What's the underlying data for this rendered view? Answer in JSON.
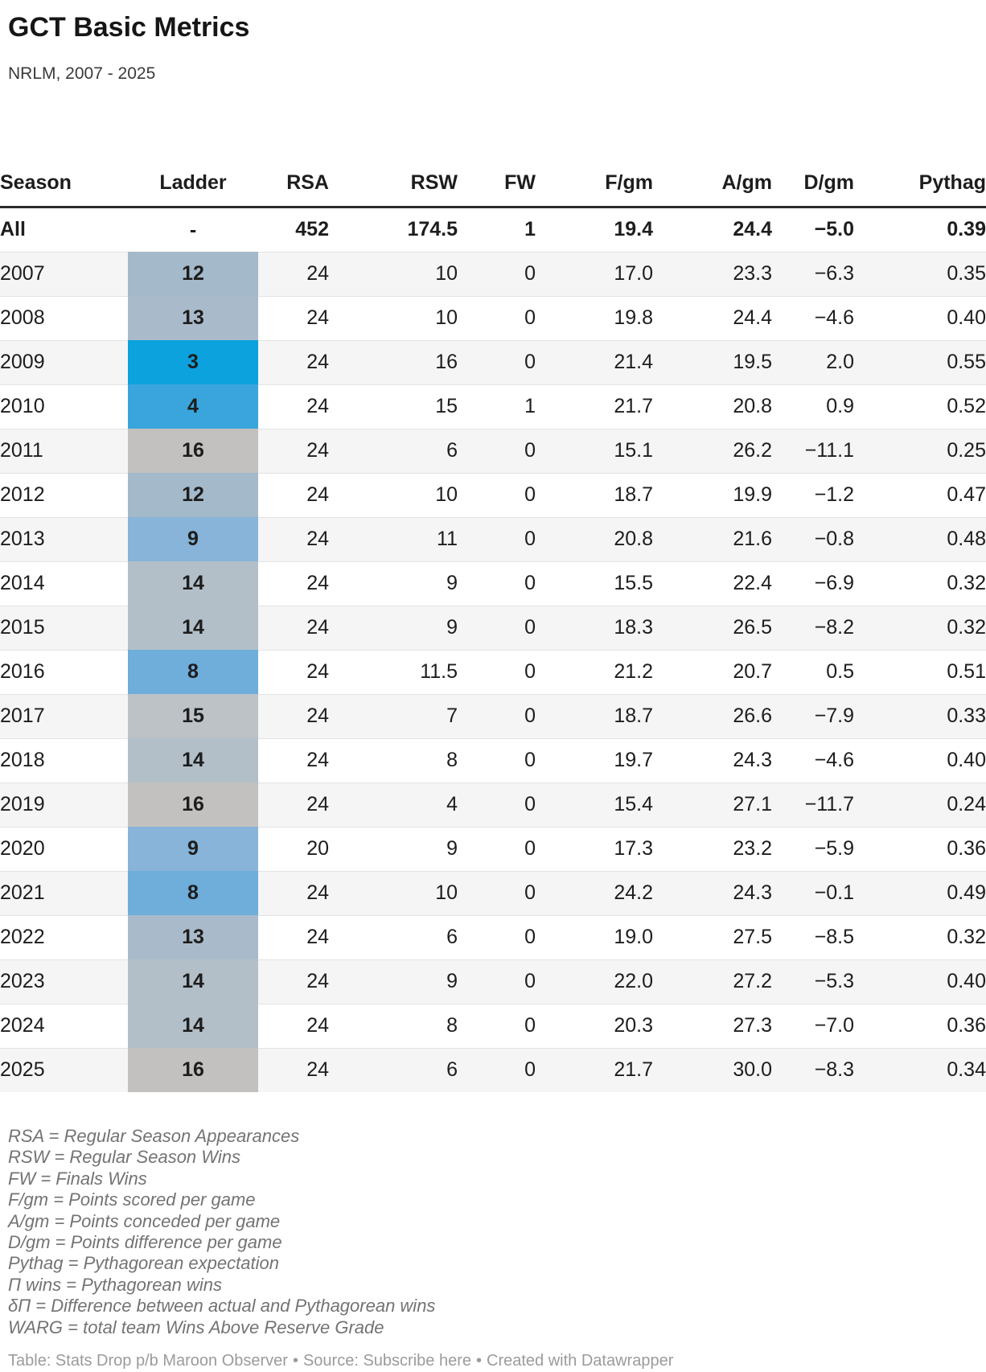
{
  "header": {
    "title": "GCT Basic Metrics",
    "subtitle": "NRLM, 2007 - 2025"
  },
  "chart_data": {
    "type": "table",
    "title": "GCT Basic Metrics",
    "subtitle": "NRLM, 2007 - 2025",
    "columns": [
      {
        "key": "season",
        "label": "Season",
        "align": "left"
      },
      {
        "key": "ladder",
        "label": "Ladder",
        "align": "center"
      },
      {
        "key": "rsa",
        "label": "RSA",
        "align": "right"
      },
      {
        "key": "rsw",
        "label": "RSW",
        "align": "right"
      },
      {
        "key": "fw",
        "label": "FW",
        "align": "right"
      },
      {
        "key": "fgm",
        "label": "F/gm",
        "align": "right"
      },
      {
        "key": "agm",
        "label": "A/gm",
        "align": "right"
      },
      {
        "key": "dgm",
        "label": "D/gm",
        "align": "right"
      },
      {
        "key": "pyth",
        "label": "Pythag",
        "align": "right"
      }
    ],
    "rows": [
      {
        "season": "All",
        "ladder": "-",
        "ladder_bg": null,
        "ladder_light": false,
        "rsa": "452",
        "rsw": "174.5",
        "fw": "1",
        "fgm": "19.4",
        "agm": "24.4",
        "dgm": "−5.0",
        "pyth": "0.39",
        "bold": true
      },
      {
        "season": "2007",
        "ladder": "12",
        "ladder_bg": "#a4b9ca",
        "ladder_light": false,
        "rsa": "24",
        "rsw": "10",
        "fw": "0",
        "fgm": "17.0",
        "agm": "23.3",
        "dgm": "−6.3",
        "pyth": "0.35",
        "bold": false
      },
      {
        "season": "2008",
        "ladder": "13",
        "ladder_bg": "#a9bbca",
        "ladder_light": false,
        "rsa": "24",
        "rsw": "10",
        "fw": "0",
        "fgm": "19.8",
        "agm": "24.4",
        "dgm": "−4.6",
        "pyth": "0.40",
        "bold": false
      },
      {
        "season": "2009",
        "ladder": "3",
        "ladder_bg": "#0ba2de",
        "ladder_light": true,
        "rsa": "24",
        "rsw": "16",
        "fw": "0",
        "fgm": "21.4",
        "agm": "19.5",
        "dgm": "2.0",
        "pyth": "0.55",
        "bold": false
      },
      {
        "season": "2010",
        "ladder": "4",
        "ladder_bg": "#3aa5dd",
        "ladder_light": true,
        "rsa": "24",
        "rsw": "15",
        "fw": "1",
        "fgm": "21.7",
        "agm": "20.8",
        "dgm": "0.9",
        "pyth": "0.52",
        "bold": false
      },
      {
        "season": "2011",
        "ladder": "16",
        "ladder_bg": "#c2c1bf",
        "ladder_light": false,
        "rsa": "24",
        "rsw": "6",
        "fw": "0",
        "fgm": "15.1",
        "agm": "26.2",
        "dgm": "−11.1",
        "pyth": "0.25",
        "bold": false
      },
      {
        "season": "2012",
        "ladder": "12",
        "ladder_bg": "#a4b9ca",
        "ladder_light": false,
        "rsa": "24",
        "rsw": "10",
        "fw": "0",
        "fgm": "18.7",
        "agm": "19.9",
        "dgm": "−1.2",
        "pyth": "0.47",
        "bold": false
      },
      {
        "season": "2013",
        "ladder": "9",
        "ladder_bg": "#87b4d8",
        "ladder_light": false,
        "rsa": "24",
        "rsw": "11",
        "fw": "0",
        "fgm": "20.8",
        "agm": "21.6",
        "dgm": "−0.8",
        "pyth": "0.48",
        "bold": false
      },
      {
        "season": "2014",
        "ladder": "14",
        "ladder_bg": "#b3bfc8",
        "ladder_light": false,
        "rsa": "24",
        "rsw": "9",
        "fw": "0",
        "fgm": "15.5",
        "agm": "22.4",
        "dgm": "−6.9",
        "pyth": "0.32",
        "bold": false
      },
      {
        "season": "2015",
        "ladder": "14",
        "ladder_bg": "#b3bfc8",
        "ladder_light": false,
        "rsa": "24",
        "rsw": "9",
        "fw": "0",
        "fgm": "18.3",
        "agm": "26.5",
        "dgm": "−8.2",
        "pyth": "0.32",
        "bold": false
      },
      {
        "season": "2016",
        "ladder": "8",
        "ladder_bg": "#6fadda",
        "ladder_light": true,
        "rsa": "24",
        "rsw": "11.5",
        "fw": "0",
        "fgm": "21.2",
        "agm": "20.7",
        "dgm": "0.5",
        "pyth": "0.51",
        "bold": false
      },
      {
        "season": "2017",
        "ladder": "15",
        "ladder_bg": "#bcc2c6",
        "ladder_light": false,
        "rsa": "24",
        "rsw": "7",
        "fw": "0",
        "fgm": "18.7",
        "agm": "26.6",
        "dgm": "−7.9",
        "pyth": "0.33",
        "bold": false
      },
      {
        "season": "2018",
        "ladder": "14",
        "ladder_bg": "#b3bfc8",
        "ladder_light": false,
        "rsa": "24",
        "rsw": "8",
        "fw": "0",
        "fgm": "19.7",
        "agm": "24.3",
        "dgm": "−4.6",
        "pyth": "0.40",
        "bold": false
      },
      {
        "season": "2019",
        "ladder": "16",
        "ladder_bg": "#c2c1bf",
        "ladder_light": false,
        "rsa": "24",
        "rsw": "4",
        "fw": "0",
        "fgm": "15.4",
        "agm": "27.1",
        "dgm": "−11.7",
        "pyth": "0.24",
        "bold": false
      },
      {
        "season": "2020",
        "ladder": "9",
        "ladder_bg": "#87b4d8",
        "ladder_light": false,
        "rsa": "20",
        "rsw": "9",
        "fw": "0",
        "fgm": "17.3",
        "agm": "23.2",
        "dgm": "−5.9",
        "pyth": "0.36",
        "bold": false
      },
      {
        "season": "2021",
        "ladder": "8",
        "ladder_bg": "#6fadda",
        "ladder_light": true,
        "rsa": "24",
        "rsw": "10",
        "fw": "0",
        "fgm": "24.2",
        "agm": "24.3",
        "dgm": "−0.1",
        "pyth": "0.49",
        "bold": false
      },
      {
        "season": "2022",
        "ladder": "13",
        "ladder_bg": "#a9bbca",
        "ladder_light": false,
        "rsa": "24",
        "rsw": "6",
        "fw": "0",
        "fgm": "19.0",
        "agm": "27.5",
        "dgm": "−8.5",
        "pyth": "0.32",
        "bold": false
      },
      {
        "season": "2023",
        "ladder": "14",
        "ladder_bg": "#b3bfc8",
        "ladder_light": false,
        "rsa": "24",
        "rsw": "9",
        "fw": "0",
        "fgm": "22.0",
        "agm": "27.2",
        "dgm": "−5.3",
        "pyth": "0.40",
        "bold": false
      },
      {
        "season": "2024",
        "ladder": "14",
        "ladder_bg": "#b3bfc8",
        "ladder_light": false,
        "rsa": "24",
        "rsw": "8",
        "fw": "0",
        "fgm": "20.3",
        "agm": "27.3",
        "dgm": "−7.0",
        "pyth": "0.36",
        "bold": false
      },
      {
        "season": "2025",
        "ladder": "16",
        "ladder_bg": "#c2c1bf",
        "ladder_light": false,
        "rsa": "24",
        "rsw": "6",
        "fw": "0",
        "fgm": "21.7",
        "agm": "30.0",
        "dgm": "−8.3",
        "pyth": "0.34",
        "bold": false
      }
    ],
    "ladder_color_scale": {
      "3": "#0ba2de",
      "4": "#3aa5dd",
      "8": "#6fadda",
      "9": "#87b4d8",
      "12": "#a4b9ca",
      "13": "#a9bbca",
      "14": "#b3bfc8",
      "15": "#bcc2c6",
      "16": "#c2c1bf"
    }
  },
  "footnotes": [
    "RSA = Regular Season Appearances",
    "RSW = Regular Season Wins",
    "FW = Finals Wins",
    "F/gm = Points scored per game",
    "A/gm = Points conceded per game",
    "D/gm = Points difference per game",
    "Pythag = Pythagorean expectation",
    "Π wins = Pythagorean wins",
    "δΠ = Difference between actual and Pythagorean wins",
    "WARG = total team Wins Above Reserve Grade"
  ],
  "footer": {
    "credit": "Table: Stats Drop p/b Maroon Observer",
    "separator": "•",
    "source_label": "Source:",
    "source_link": "Subscribe here",
    "created_with": "Created with Datawrapper"
  },
  "colors": {
    "header_rule": "#2b2b2b",
    "row_stripe": "#f5f5f5",
    "row_border": "#e3e3e3"
  }
}
